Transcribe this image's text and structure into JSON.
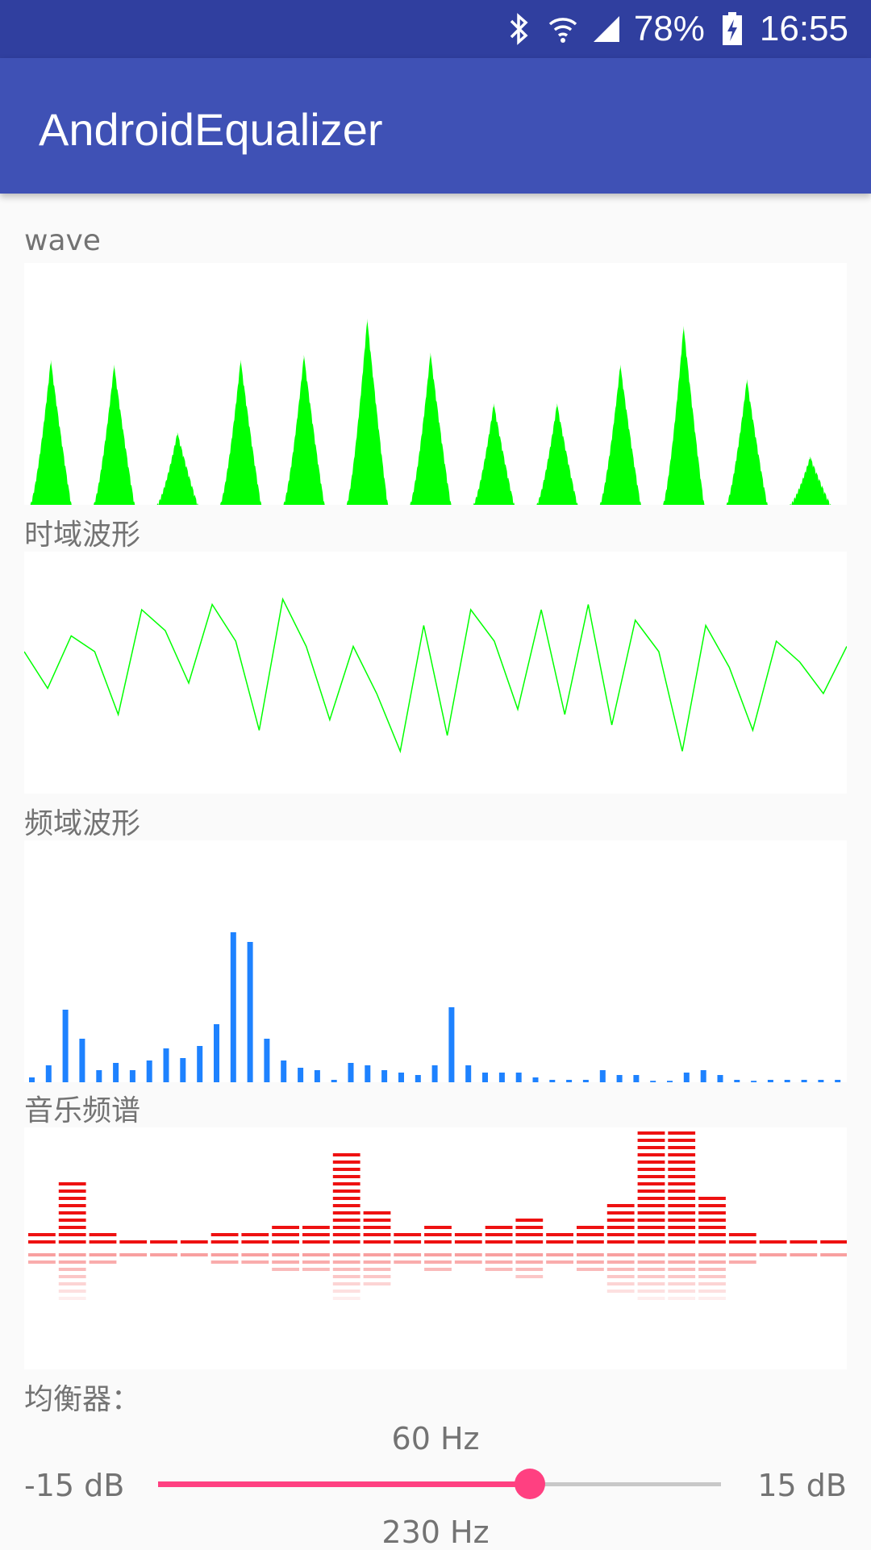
{
  "status_bar": {
    "battery_percent": "78%",
    "time": "16:55",
    "icons": [
      "bluetooth-icon",
      "wifi-icon",
      "signal-icon",
      "battery-charging-icon"
    ]
  },
  "app_bar": {
    "title": "AndroidEqualizer"
  },
  "sections": {
    "wave": "wave",
    "time_domain": "时域波形",
    "freq_domain": "频域波形",
    "music_spectrum": "音乐频谱",
    "equalizer": "均衡器："
  },
  "colors": {
    "primary": "#3f51b5",
    "primary_dark": "#303f9f",
    "accent": "#ff4081",
    "wave_green": "#00ff00",
    "fft_blue": "#1e82ff",
    "spectrum_red": "#ee1111"
  },
  "wave_envelope": {
    "peaks": [
      0.6,
      0.58,
      0.3,
      0.6,
      0.62,
      0.77,
      0.63,
      0.42,
      0.42,
      0.58,
      0.74,
      0.52,
      0.2
    ]
  },
  "time_domain": {
    "samples": [
      0.2,
      -0.15,
      0.35,
      0.2,
      -0.4,
      0.6,
      0.4,
      -0.1,
      0.65,
      0.3,
      -0.55,
      0.7,
      0.25,
      -0.45,
      0.25,
      -0.2,
      -0.75,
      0.45,
      -0.6,
      0.6,
      0.3,
      -0.35,
      0.6,
      -0.4,
      0.65,
      -0.5,
      0.5,
      0.2,
      -0.75,
      0.45,
      0.05,
      -0.55,
      0.3,
      0.1,
      -0.2,
      0.25
    ]
  },
  "frequency_domain": {
    "bars": [
      2,
      7,
      30,
      18,
      5,
      8,
      5,
      9,
      14,
      10,
      15,
      24,
      62,
      58,
      18,
      9,
      6,
      5,
      1,
      8,
      7,
      5,
      4,
      3,
      7,
      31,
      7,
      4,
      4,
      4,
      2,
      1,
      1,
      1,
      5,
      3,
      3,
      0,
      0,
      4,
      5,
      3,
      1,
      0,
      1,
      1,
      1,
      1,
      1
    ]
  },
  "music_spectrum": {
    "levels": [
      2,
      9,
      2,
      1,
      1,
      1,
      2,
      2,
      3,
      3,
      13,
      5,
      2,
      3,
      2,
      3,
      4,
      2,
      3,
      6,
      16,
      16,
      7,
      2,
      1,
      1,
      0
    ]
  },
  "equalizer": {
    "band1": {
      "freq": "60 Hz",
      "min": "-15 dB",
      "max": "15 dB",
      "value_fraction": 0.66
    },
    "band2": {
      "freq": "230 Hz"
    }
  }
}
